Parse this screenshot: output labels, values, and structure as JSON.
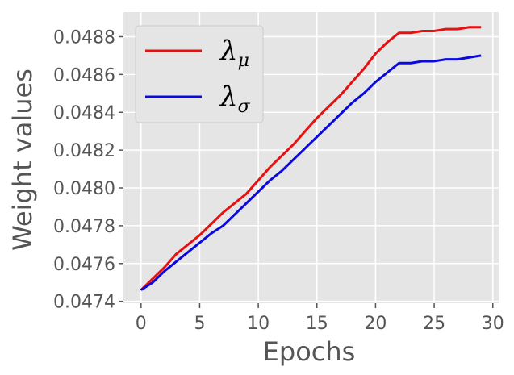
{
  "chart_data": {
    "type": "line",
    "xlabel": "Epochs",
    "ylabel": "Weight values",
    "xlim": [
      -1.5,
      30.5
    ],
    "ylim": [
      0.04739,
      0.04893
    ],
    "xticks": [
      0,
      5,
      10,
      15,
      20,
      25,
      30
    ],
    "xtick_labels": [
      "0",
      "5",
      "10",
      "15",
      "20",
      "25",
      "30"
    ],
    "yticks": [
      0.0474,
      0.0476,
      0.0478,
      0.048,
      0.0482,
      0.0484,
      0.0486,
      0.0488
    ],
    "ytick_labels": [
      "0.0474",
      "0.0476",
      "0.0478",
      "0.0480",
      "0.0482",
      "0.0484",
      "0.0486",
      "0.0488"
    ],
    "grid": true,
    "legend_position": "top-left",
    "x": [
      0,
      1,
      2,
      3,
      4,
      5,
      6,
      7,
      8,
      9,
      10,
      11,
      12,
      13,
      14,
      15,
      16,
      17,
      18,
      19,
      20,
      21,
      22,
      23,
      24,
      25,
      26,
      27,
      28,
      29
    ],
    "series": [
      {
        "name": "λμ",
        "symbol": "λ",
        "subscript": "μ",
        "color": "#e81010",
        "values": [
          0.04746,
          0.04752,
          0.04758,
          0.04765,
          0.0477,
          0.04775,
          0.04781,
          0.04787,
          0.04792,
          0.04797,
          0.04804,
          0.04811,
          0.04817,
          0.04823,
          0.0483,
          0.04837,
          0.04843,
          0.04849,
          0.04856,
          0.04863,
          0.04871,
          0.04877,
          0.04882,
          0.04882,
          0.04883,
          0.04883,
          0.04884,
          0.04884,
          0.04885,
          0.04885
        ]
      },
      {
        "name": "λσ",
        "symbol": "λ",
        "subscript": "σ",
        "color": "#0a0ae0",
        "values": [
          0.04746,
          0.0475,
          0.04756,
          0.04761,
          0.04766,
          0.04771,
          0.04776,
          0.0478,
          0.04786,
          0.04792,
          0.04798,
          0.04804,
          0.04809,
          0.04815,
          0.04821,
          0.04827,
          0.04833,
          0.04839,
          0.04845,
          0.0485,
          0.04856,
          0.04861,
          0.04866,
          0.04866,
          0.04867,
          0.04867,
          0.04868,
          0.04868,
          0.04869,
          0.0487
        ]
      }
    ]
  },
  "colors": {
    "plot_background": "#e5e5e5",
    "grid": "#ffffff",
    "text": "#555555"
  }
}
